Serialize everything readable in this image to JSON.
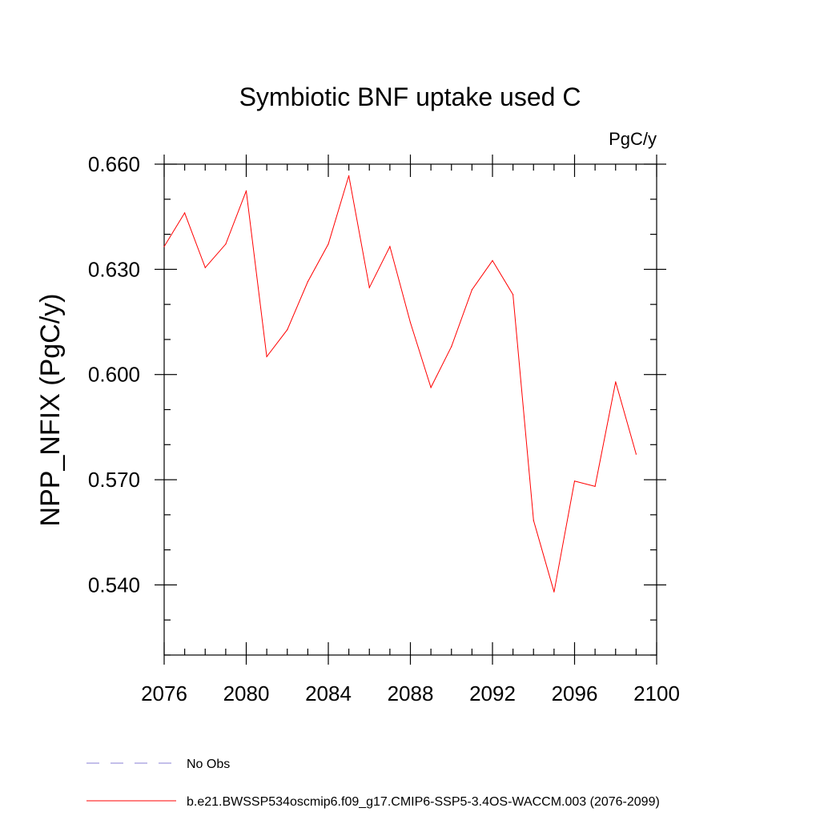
{
  "chart_data": {
    "type": "line",
    "title": "Symbiotic BNF uptake used C",
    "units": "PgC/y",
    "ylabel": "NPP_NFIX  (PgC/y)",
    "xlabel": "",
    "xlim": [
      2076,
      2100
    ],
    "ylim": [
      0.52,
      0.66
    ],
    "x_ticks": [
      "2076",
      "2080",
      "2084",
      "2088",
      "2092",
      "2096",
      "2100"
    ],
    "y_ticks": [
      "0.540",
      "0.570",
      "0.600",
      "0.630",
      "0.660"
    ],
    "series": [
      {
        "name": "b.e21.BWSSP534oscmip6.f09_g17.CMIP6-SSP5-3.4OS-WACCM.003 (2076-2099)",
        "color": "#ff0000",
        "style": "solid",
        "x": [
          2076,
          2077,
          2078,
          2079,
          2080,
          2081,
          2082,
          2083,
          2084,
          2085,
          2086,
          2087,
          2088,
          2089,
          2090,
          2091,
          2092,
          2093,
          2094,
          2095,
          2096,
          2097,
          2098,
          2099
        ],
        "values": [
          0.6365,
          0.6461,
          0.6305,
          0.6372,
          0.6524,
          0.6051,
          0.6128,
          0.6265,
          0.6372,
          0.6567,
          0.6248,
          0.6365,
          0.6148,
          0.5963,
          0.608,
          0.6242,
          0.6325,
          0.6228,
          0.5584,
          0.538,
          0.5696,
          0.5681,
          0.5979,
          0.5773
        ]
      },
      {
        "name": "No Obs",
        "color": "#8a7fd6",
        "style": "dashed",
        "x": [],
        "values": []
      }
    ],
    "legend": [
      {
        "label": "No Obs",
        "color": "#8a7fd6",
        "style": "dashed"
      },
      {
        "label": "b.e21.BWSSP534oscmip6.f09_g17.CMIP6-SSP5-3.4OS-WACCM.003 (2076-2099)",
        "color": "#ff0000",
        "style": "solid"
      }
    ]
  }
}
